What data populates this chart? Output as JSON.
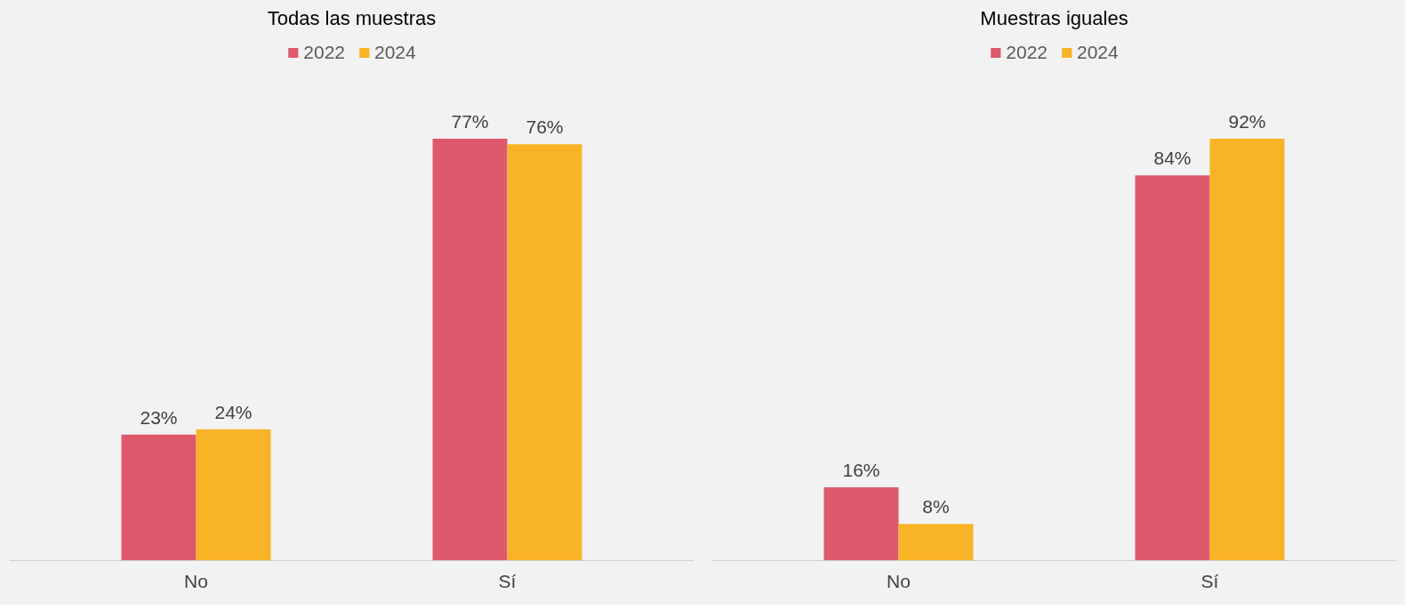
{
  "chart_data": [
    {
      "type": "bar",
      "title": "Todas las muestras",
      "categories": [
        "No",
        "Sí"
      ],
      "legend": "top",
      "grid": false,
      "series": [
        {
          "name": "2022",
          "color": "#de596c",
          "values": [
            23,
            77
          ],
          "value_labels": [
            "23%",
            "77%"
          ]
        },
        {
          "name": "2024",
          "color": "#f9b326",
          "values": [
            24,
            76
          ],
          "value_labels": [
            "24%",
            "76%"
          ]
        }
      ]
    },
    {
      "type": "bar",
      "title": "Muestras iguales",
      "categories": [
        "No",
        "Sí"
      ],
      "legend": "top",
      "grid": false,
      "series": [
        {
          "name": "2022",
          "color": "#de596c",
          "values": [
            16,
            84
          ],
          "value_labels": [
            "16%",
            "84%"
          ]
        },
        {
          "name": "2024",
          "color": "#f9b326",
          "values": [
            8,
            92
          ],
          "value_labels": [
            "8%",
            "92%"
          ]
        }
      ]
    }
  ]
}
